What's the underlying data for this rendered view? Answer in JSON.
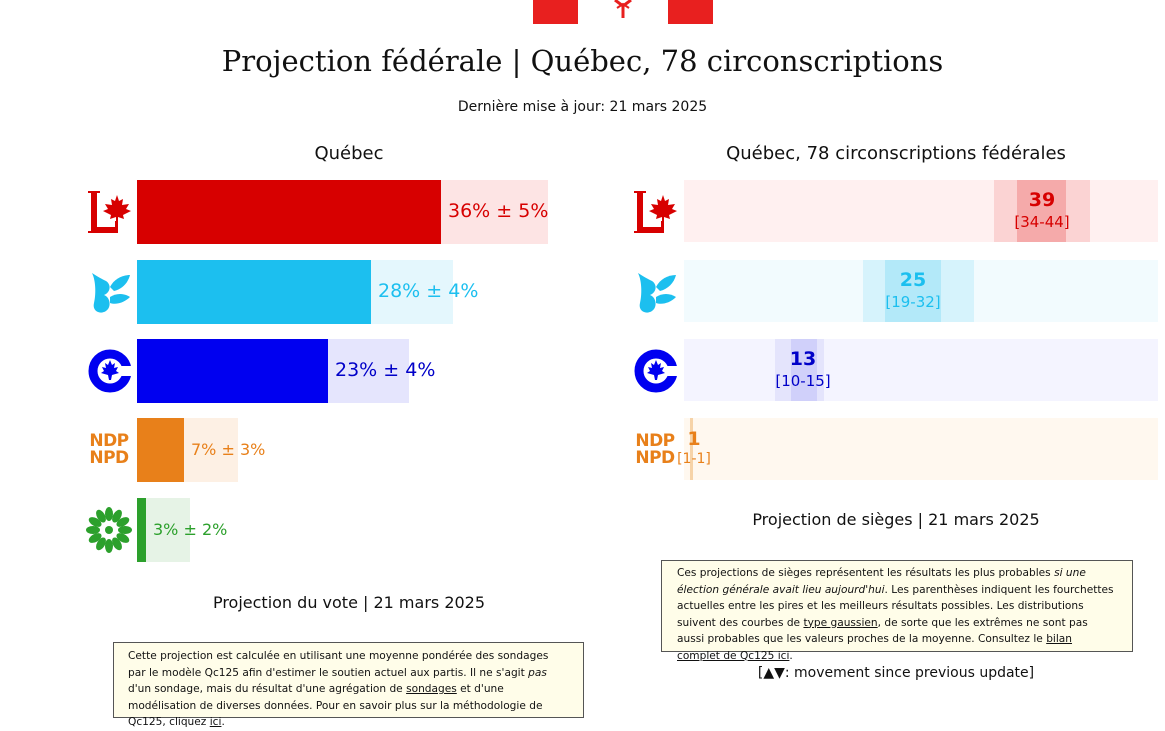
{
  "header": {
    "title": "Projection fédérale | Québec, 78 circonscriptions",
    "updated": "Dernière mise à jour: 21 mars 2025"
  },
  "colors": {
    "flag_red": "#e8201f",
    "lpc": "#d70000",
    "bq": "#1cbfef",
    "cpc": "#0000f0",
    "ndp": "#e8801a",
    "gpc": "#2ca02c"
  },
  "vote_panel": {
    "title": "Québec",
    "parties": [
      {
        "logo": "liberal-logo-icon",
        "label": "36% ± 5%",
        "value": 36,
        "error": 5
      },
      {
        "logo": "bloc-logo-icon",
        "label": "28% ± 4%",
        "value": 28,
        "error": 4
      },
      {
        "logo": "conservative-logo-icon",
        "label": "23% ± 4%",
        "value": 23,
        "error": 4
      },
      {
        "logo": "ndp-logo-icon",
        "label": "7% ± 3%",
        "value": 7,
        "error": 3,
        "logo_text_1": "NDP",
        "logo_text_2": "NPD"
      },
      {
        "logo": "green-logo-icon",
        "label": "3% ± 2%",
        "value": 3,
        "error": 2
      }
    ],
    "caption": "Projection du vote | 21 mars 2025",
    "note": {
      "t1": "Cette projection est calculée en utilisant une moyenne pondérée des sondages par le modèle Qc125 afin d'estimer le soutien actuel aux partis. Il ne s'agit ",
      "t2": "pas",
      "t3": " d'un sondage, mais du résultat d'une agrégation de ",
      "link1": "sondages",
      "t4": " et d'une modélisation de diverses données. Pour en savoir plus sur la méthodologie de Qc125, cliquez ",
      "link2": "ici",
      "t5": "."
    }
  },
  "seat_panel": {
    "title": "Québec, 78 circonscriptions fédérales",
    "parties": [
      {
        "logo": "liberal-logo-icon",
        "seats": "39",
        "range": "[34-44]",
        "value": 39,
        "low": 34,
        "high": 44
      },
      {
        "logo": "bloc-logo-icon",
        "seats": "25",
        "range": "[19-32]",
        "value": 25,
        "low": 19,
        "high": 32
      },
      {
        "logo": "conservative-logo-icon",
        "seats": "13",
        "range": "[10-15]",
        "value": 13,
        "low": 10,
        "high": 15
      },
      {
        "logo": "ndp-logo-icon",
        "seats": "1",
        "range": "[1-1]",
        "value": 1,
        "low": 1,
        "high": 1,
        "logo_text_1": "NDP",
        "logo_text_2": "NPD"
      }
    ],
    "caption": "Projection de sièges | 21 mars 2025",
    "note": {
      "t1": "Ces projections de sièges représentent les résultats les plus probables ",
      "t2": "si une élection générale avait lieu aujourd'hui",
      "t3": ". Les parenthèses indiquent les fourchettes actuelles entre les pires et les meilleurs résultats possibles. Les distributions suivent des courbes de ",
      "link1": "type gaussien",
      "t4": ", de sorte que les extrêmes ne sont pas aussi probables que les valeurs proches de la moyenne. Consultez le ",
      "link2": "bilan complet de Qc125 ici",
      "t5": "."
    },
    "legend": "[▲▼: movement since previous update]"
  }
}
